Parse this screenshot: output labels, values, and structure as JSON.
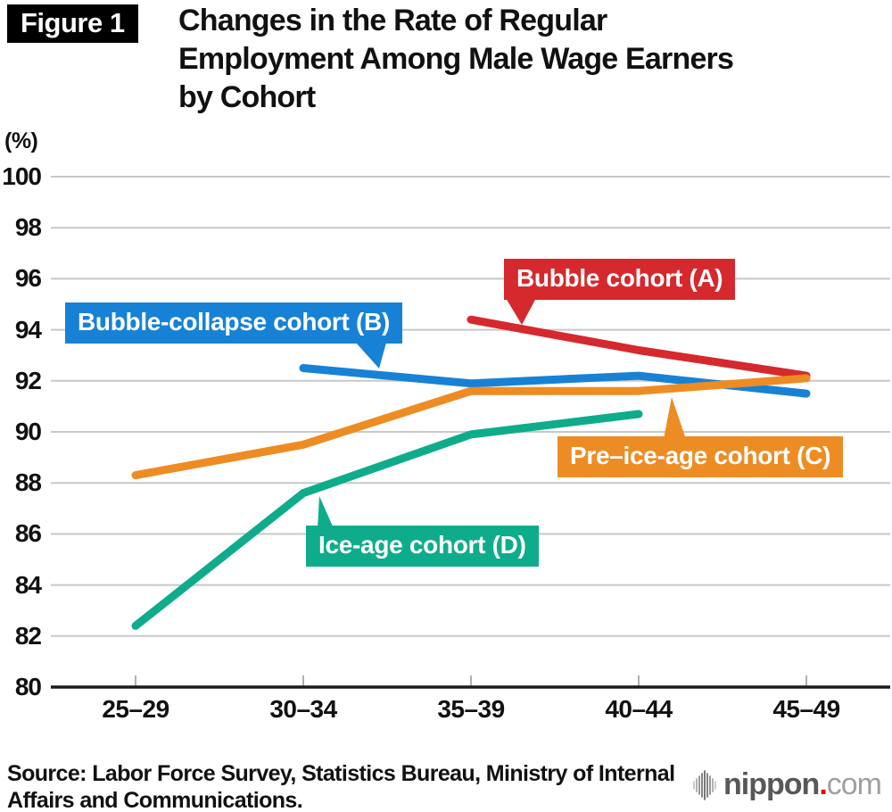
{
  "header": {
    "figure_label": "Figure 1",
    "title_lines": [
      "Changes in the Rate of Regular",
      "Employment Among Male Wage Earners",
      "by Cohort"
    ]
  },
  "chart_data": {
    "type": "line",
    "title": "Changes in the Rate of Regular Employment Among Male Wage Earners by Cohort",
    "unit_label": "(%)",
    "categories": [
      "25–29",
      "30–34",
      "35–39",
      "40–44",
      "45–49"
    ],
    "xlabel": "",
    "ylabel": "(%)",
    "ylim": [
      80,
      100
    ],
    "y_axis": {
      "min": 80,
      "max": 100,
      "step": 2,
      "tick_labels": [
        "80",
        "82",
        "84",
        "86",
        "88",
        "90",
        "92",
        "94",
        "96",
        "98",
        "100"
      ]
    },
    "grid": true,
    "legend_position": "inline-callouts",
    "series": [
      {
        "name": "Bubble cohort (A)",
        "color": "#d5292d",
        "values": [
          null,
          null,
          94.4,
          93.2,
          92.2
        ]
      },
      {
        "name": "Bubble-collapse cohort (B)",
        "color": "#1782d5",
        "values": [
          null,
          92.5,
          91.9,
          92.2,
          91.5
        ]
      },
      {
        "name": "Pre–ice-age cohort (C)",
        "color": "#ee8c24",
        "values": [
          88.3,
          89.5,
          91.6,
          91.6,
          92.1
        ]
      },
      {
        "name": "Ice-age cohort (D)",
        "color": "#0fac8b",
        "values": [
          82.4,
          87.6,
          89.9,
          90.7,
          null
        ]
      }
    ],
    "axis_colors": {
      "gridline": "#c8c8c8",
      "baseline": "#1a1a1a",
      "tick": "#b0b0b0"
    }
  },
  "footer": {
    "source_lines": [
      "Source: Labor Force Survey, Statistics Bureau, Ministry of Internal",
      "Affairs and Communications."
    ],
    "logo": {
      "name": "nippon",
      "dot": ".",
      "tld": "com"
    }
  }
}
